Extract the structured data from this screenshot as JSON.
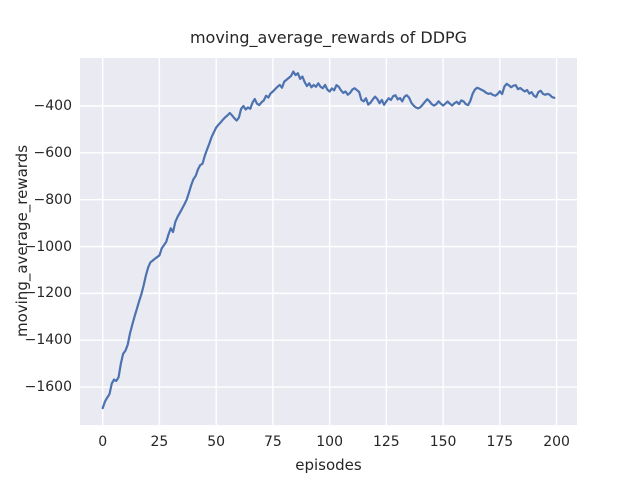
{
  "chart_data": {
    "type": "line",
    "title": "moving_average_rewards of DDPG",
    "xlabel": "episodes",
    "ylabel": "moving_average_rewards",
    "xlim": [
      -10,
      209
    ],
    "ylim": [
      -1762,
      -195
    ],
    "grid": true,
    "legend": "none",
    "x_ticks": [
      {
        "value": 0,
        "label": "0"
      },
      {
        "value": 25,
        "label": "25"
      },
      {
        "value": 50,
        "label": "50"
      },
      {
        "value": 75,
        "label": "75"
      },
      {
        "value": 100,
        "label": "100"
      },
      {
        "value": 125,
        "label": "125"
      },
      {
        "value": 150,
        "label": "150"
      },
      {
        "value": 175,
        "label": "175"
      },
      {
        "value": 200,
        "label": "200"
      }
    ],
    "y_ticks": [
      {
        "value": -400,
        "label": "−400"
      },
      {
        "value": -600,
        "label": "−600"
      },
      {
        "value": -800,
        "label": "−800"
      },
      {
        "value": -1000,
        "label": "−1000"
      },
      {
        "value": -1200,
        "label": "−1200"
      },
      {
        "value": -1400,
        "label": "−1400"
      },
      {
        "value": -1600,
        "label": "−1600"
      }
    ],
    "style": {
      "plot_background": "#eaeaf2",
      "grid_color": "#ffffff",
      "line_color": "#4c72b0",
      "text_color": "#262626",
      "figure_background": "#ffffff"
    },
    "series": [
      {
        "name": "moving_average_rewards",
        "x_start": 0,
        "x_step": 1,
        "values": [
          -1690,
          -1662,
          -1645,
          -1630,
          -1585,
          -1568,
          -1574,
          -1558,
          -1500,
          -1458,
          -1445,
          -1420,
          -1372,
          -1335,
          -1300,
          -1268,
          -1235,
          -1205,
          -1168,
          -1125,
          -1090,
          -1068,
          -1060,
          -1052,
          -1045,
          -1038,
          -1008,
          -994,
          -980,
          -948,
          -922,
          -938,
          -895,
          -873,
          -856,
          -838,
          -820,
          -800,
          -770,
          -738,
          -712,
          -698,
          -670,
          -652,
          -646,
          -612,
          -585,
          -560,
          -532,
          -512,
          -492,
          -480,
          -470,
          -458,
          -448,
          -440,
          -430,
          -440,
          -452,
          -462,
          -450,
          -412,
          -400,
          -415,
          -406,
          -412,
          -386,
          -370,
          -390,
          -396,
          -384,
          -376,
          -356,
          -364,
          -346,
          -338,
          -328,
          -318,
          -310,
          -322,
          -296,
          -288,
          -280,
          -272,
          -253,
          -268,
          -260,
          -284,
          -274,
          -298,
          -315,
          -303,
          -320,
          -310,
          -318,
          -303,
          -318,
          -324,
          -310,
          -330,
          -338,
          -325,
          -333,
          -311,
          -318,
          -333,
          -344,
          -338,
          -352,
          -344,
          -330,
          -324,
          -332,
          -340,
          -374,
          -380,
          -367,
          -394,
          -386,
          -372,
          -360,
          -370,
          -388,
          -374,
          -395,
          -380,
          -367,
          -374,
          -358,
          -354,
          -372,
          -366,
          -380,
          -360,
          -354,
          -364,
          -386,
          -398,
          -406,
          -410,
          -405,
          -394,
          -382,
          -371,
          -380,
          -392,
          -398,
          -392,
          -380,
          -390,
          -398,
          -390,
          -381,
          -390,
          -398,
          -388,
          -382,
          -392,
          -376,
          -380,
          -392,
          -396,
          -378,
          -348,
          -330,
          -322,
          -326,
          -331,
          -336,
          -344,
          -348,
          -346,
          -353,
          -356,
          -349,
          -337,
          -349,
          -317,
          -305,
          -312,
          -320,
          -313,
          -311,
          -328,
          -323,
          -331,
          -338,
          -332,
          -347,
          -341,
          -356,
          -362,
          -340,
          -335,
          -348,
          -352,
          -348,
          -352,
          -362,
          -365
        ]
      }
    ]
  }
}
